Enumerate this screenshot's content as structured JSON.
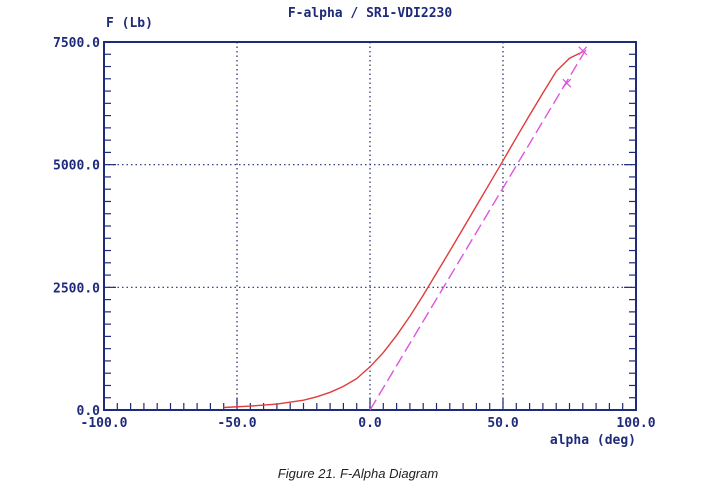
{
  "chart_data": {
    "type": "line",
    "title": "F-alpha / SR1-VDI2230",
    "ylabel": "F (Lb)",
    "xlabel": "alpha (deg)",
    "xlim": [
      -100,
      100
    ],
    "ylim": [
      0,
      7500
    ],
    "x_ticks": [
      -100,
      -50,
      0,
      50,
      100
    ],
    "x_tick_labels": [
      "-100.0",
      "-50.0",
      "0.0",
      "50.0",
      "100.0"
    ],
    "y_ticks": [
      0,
      2500,
      5000,
      7500
    ],
    "y_tick_labels": [
      "0.0",
      "2500.0",
      "5000.0",
      "7500.0"
    ],
    "grid": true,
    "series": [
      {
        "style": "solid",
        "color": "#e03c3c",
        "x": [
          -55,
          -45,
          -35,
          -25,
          -20,
          -15,
          -10,
          -5,
          0,
          5,
          10,
          15,
          20,
          25,
          30,
          35,
          40,
          45,
          50,
          55,
          60,
          65,
          70,
          75,
          80
        ],
        "y": [
          50,
          80,
          120,
          200,
          270,
          360,
          480,
          640,
          880,
          1170,
          1520,
          1910,
          2340,
          2790,
          3240,
          3700,
          4160,
          4620,
          5080,
          5550,
          6010,
          6460,
          6900,
          7170,
          7300
        ]
      },
      {
        "style": "dashed",
        "color": "#dd55dd",
        "x": [
          0,
          82
        ],
        "y": [
          0,
          7420
        ]
      }
    ],
    "markers": [
      {
        "x": 74,
        "y": 6660,
        "color": "#dd55dd"
      },
      {
        "x": 80,
        "y": 7320,
        "color": "#dd55dd"
      }
    ]
  },
  "caption": "Figure 21. F-Alpha Diagram"
}
